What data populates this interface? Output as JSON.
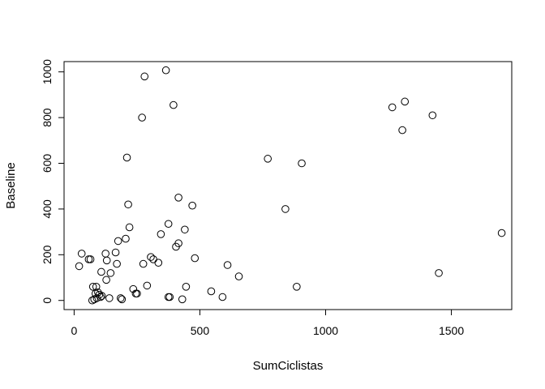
{
  "chart_data": {
    "type": "scatter",
    "title": "",
    "xlabel": "SumCiclistas",
    "ylabel": "Baseline",
    "xlim": [
      -40,
      1740
    ],
    "ylim": [
      -40,
      1045
    ],
    "xticks": [
      0,
      500,
      1000,
      1500
    ],
    "yticks": [
      0,
      200,
      400,
      600,
      800,
      1000
    ],
    "grid": false,
    "legend": "none",
    "marker": "open-circle",
    "point_color": "#000000",
    "points": [
      [
        20,
        150
      ],
      [
        30,
        205
      ],
      [
        58,
        180
      ],
      [
        65,
        180
      ],
      [
        72,
        0
      ],
      [
        75,
        60
      ],
      [
        80,
        5
      ],
      [
        85,
        30
      ],
      [
        88,
        60
      ],
      [
        90,
        10
      ],
      [
        95,
        35
      ],
      [
        100,
        25
      ],
      [
        105,
        15
      ],
      [
        108,
        125
      ],
      [
        110,
        20
      ],
      [
        125,
        205
      ],
      [
        128,
        90
      ],
      [
        130,
        175
      ],
      [
        140,
        10
      ],
      [
        145,
        120
      ],
      [
        165,
        210
      ],
      [
        170,
        160
      ],
      [
        175,
        260
      ],
      [
        185,
        10
      ],
      [
        190,
        5
      ],
      [
        205,
        270
      ],
      [
        210,
        625
      ],
      [
        215,
        420
      ],
      [
        220,
        320
      ],
      [
        235,
        50
      ],
      [
        245,
        30
      ],
      [
        250,
        30
      ],
      [
        270,
        800
      ],
      [
        275,
        160
      ],
      [
        280,
        980
      ],
      [
        290,
        65
      ],
      [
        305,
        190
      ],
      [
        315,
        180
      ],
      [
        335,
        165
      ],
      [
        345,
        290
      ],
      [
        365,
        1007
      ],
      [
        375,
        335
      ],
      [
        375,
        15
      ],
      [
        380,
        15
      ],
      [
        395,
        855
      ],
      [
        405,
        235
      ],
      [
        415,
        250
      ],
      [
        415,
        450
      ],
      [
        430,
        5
      ],
      [
        440,
        310
      ],
      [
        445,
        60
      ],
      [
        470,
        415
      ],
      [
        480,
        185
      ],
      [
        545,
        40
      ],
      [
        590,
        15
      ],
      [
        610,
        155
      ],
      [
        655,
        105
      ],
      [
        770,
        620
      ],
      [
        840,
        400
      ],
      [
        885,
        60
      ],
      [
        905,
        600
      ],
      [
        1265,
        845
      ],
      [
        1305,
        745
      ],
      [
        1315,
        870
      ],
      [
        1425,
        810
      ],
      [
        1450,
        120
      ],
      [
        1700,
        295
      ]
    ]
  }
}
